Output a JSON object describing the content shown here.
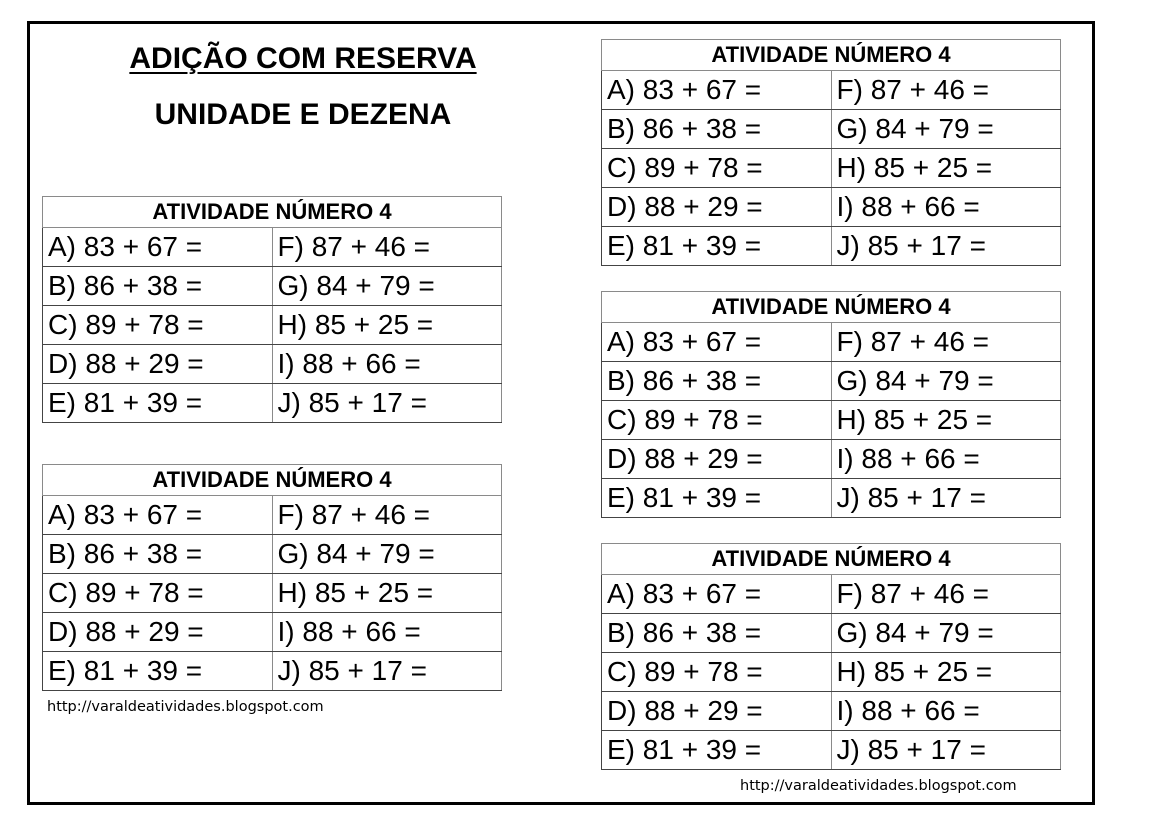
{
  "title": "ADIÇÃO COM RESERVA",
  "subtitle": "UNIDADE E DEZENA",
  "activities": [
    {
      "header": "ATIVIDADE NÚMERO 4",
      "rows": [
        [
          "A) 83 + 67 =",
          "F) 87 + 46 ="
        ],
        [
          "B) 86 + 38 =",
          "G) 84 + 79 ="
        ],
        [
          "C) 89 + 78 =",
          "H) 85 + 25 ="
        ],
        [
          "D) 88 + 29 =",
          "I) 88 + 66 ="
        ],
        [
          "E) 81 + 39 =",
          "J) 85 + 17 ="
        ]
      ]
    },
    {
      "header": "ATIVIDADE NÚMERO 4",
      "rows": [
        [
          "A) 83 + 67 =",
          "F) 87 + 46 ="
        ],
        [
          "B) 86 + 38 =",
          "G) 84 + 79 ="
        ],
        [
          "C) 89 + 78 =",
          "H) 85 + 25 ="
        ],
        [
          "D) 88 + 29 =",
          "I) 88 + 66 ="
        ],
        [
          "E) 81 + 39 =",
          "J) 85 + 17 ="
        ]
      ]
    },
    {
      "header": "ATIVIDADE NÚMERO 4",
      "rows": [
        [
          "A) 83 + 67 =",
          "F) 87 + 46 ="
        ],
        [
          "B) 86 + 38 =",
          "G) 84 + 79 ="
        ],
        [
          "C) 89 + 78 =",
          "H) 85 + 25 ="
        ],
        [
          "D) 88 + 29 =",
          "I) 88 + 66 ="
        ],
        [
          "E) 81 + 39 =",
          "J) 85 + 17 ="
        ]
      ]
    },
    {
      "header": "ATIVIDADE NÚMERO 4",
      "rows": [
        [
          "A) 83 + 67 =",
          "F) 87 + 46 ="
        ],
        [
          "B) 86 + 38 =",
          "G) 84 + 79 ="
        ],
        [
          "C) 89 + 78 =",
          "H) 85 + 25 ="
        ],
        [
          "D) 88 + 29 =",
          "I) 88 + 66 ="
        ],
        [
          "E) 81 + 39 =",
          "J) 85 + 17 ="
        ]
      ]
    },
    {
      "header": "ATIVIDADE NÚMERO 4",
      "rows": [
        [
          "A) 83 + 67 =",
          "F) 87 + 46 ="
        ],
        [
          "B) 86 + 38 =",
          "G) 84 + 79 ="
        ],
        [
          "C) 89 + 78 =",
          "H) 85 + 25 ="
        ],
        [
          "D) 88 + 29 =",
          "I) 88 + 66 ="
        ],
        [
          "E) 81 + 39 =",
          "J) 85 + 17 ="
        ]
      ]
    }
  ],
  "footer_url": "http://varaldeatividades.blogspot.com"
}
